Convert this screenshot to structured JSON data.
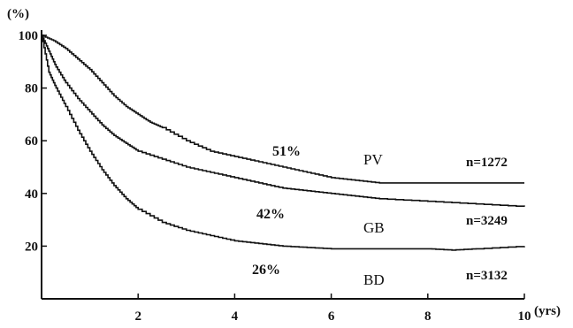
{
  "chart_data": {
    "type": "line",
    "title": "",
    "xlabel": "",
    "ylabel": "",
    "x_unit": "(yrs)",
    "y_unit": "(%)",
    "xlim": [
      0,
      10
    ],
    "ylim": [
      0,
      100
    ],
    "x_ticks": [
      "2",
      "4",
      "6",
      "8",
      "10"
    ],
    "y_ticks": [
      "100",
      "80",
      "60",
      "40",
      "20"
    ],
    "grid": false,
    "series": [
      {
        "name": "PV",
        "percent_label": "51%",
        "n_label": "n=1272",
        "color": "#111111",
        "x": [
          0,
          0.25,
          0.5,
          0.75,
          1,
          1.25,
          1.5,
          1.75,
          2,
          2.25,
          2.5,
          3,
          3.5,
          4,
          4.5,
          5,
          5.5,
          6,
          6.5,
          7,
          8,
          9,
          10
        ],
        "y": [
          100,
          98,
          95,
          91,
          87,
          82,
          77,
          73,
          70,
          67,
          65,
          60,
          56,
          54,
          52,
          50,
          48,
          46,
          45,
          44,
          44,
          44,
          44
        ]
      },
      {
        "name": "GB",
        "percent_label": "42%",
        "n_label": "n=3249",
        "color": "#111111",
        "x": [
          0,
          0.15,
          0.3,
          0.5,
          0.75,
          1,
          1.25,
          1.5,
          1.75,
          2,
          2.5,
          3,
          3.5,
          4,
          4.5,
          5,
          5.5,
          6,
          6.5,
          7,
          8,
          9,
          10
        ],
        "y": [
          100,
          94,
          88,
          82,
          76,
          71,
          66,
          62,
          59,
          56,
          53,
          50,
          48,
          46,
          44,
          42,
          41,
          40,
          39,
          38,
          37,
          36,
          35
        ]
      },
      {
        "name": "BD",
        "percent_label": "26%",
        "n_label": "n=3132",
        "color": "#111111",
        "x": [
          0,
          0.15,
          0.3,
          0.5,
          0.75,
          1,
          1.25,
          1.5,
          1.75,
          2,
          2.5,
          3,
          3.5,
          4,
          4.5,
          5,
          5.5,
          6,
          6.5,
          7,
          8,
          8.5,
          9,
          10
        ],
        "y": [
          100,
          86,
          80,
          73,
          64,
          56,
          49,
          43,
          38,
          34,
          29,
          26,
          24,
          22,
          21,
          20,
          19.5,
          19,
          19,
          19,
          19,
          18.5,
          19,
          20
        ]
      }
    ]
  }
}
